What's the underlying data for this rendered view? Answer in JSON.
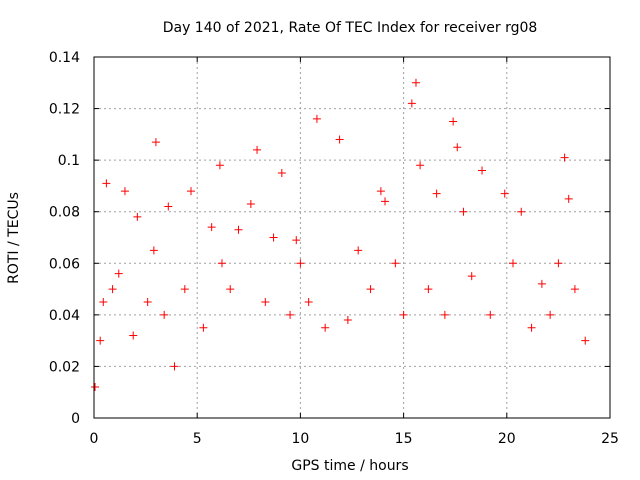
{
  "chart_data": {
    "type": "scatter",
    "title": "Day 140 of 2021, Rate Of TEC Index for receiver rg08",
    "xlabel": "GPS time / hours",
    "ylabel": "ROTI / TECUs",
    "xlim": [
      0,
      25
    ],
    "ylim": [
      0,
      0.14
    ],
    "xticks": [
      "0",
      "5",
      "10",
      "15",
      "20",
      "25"
    ],
    "yticks": [
      "0",
      "0.02",
      "0.04",
      "0.06",
      "0.08",
      "0.1",
      "0.12",
      "0.14"
    ],
    "grid": true,
    "marker": "+",
    "color": "#ff0000",
    "series": [
      {
        "x": [
          0.05,
          0.3,
          0.45,
          0.6,
          0.9,
          1.2,
          1.5,
          1.9,
          2.1,
          2.6,
          2.9,
          3.0,
          3.4,
          3.6,
          3.9,
          4.4,
          4.7,
          5.3,
          5.7,
          6.1,
          6.2,
          6.6,
          7.0,
          7.6,
          7.9,
          8.3,
          8.7,
          9.1,
          9.5,
          9.8,
          10.0,
          10.4,
          10.8,
          11.2,
          11.9,
          12.3,
          12.8,
          13.4,
          13.9,
          14.1,
          14.6,
          15.0,
          15.4,
          15.6,
          15.8,
          16.2,
          16.6,
          17.0,
          17.4,
          17.6,
          17.9,
          18.3,
          18.8,
          19.2,
          19.9,
          20.3,
          20.7,
          21.2,
          21.7,
          22.1,
          22.5,
          22.8,
          23.0,
          23.3,
          23.8
        ],
        "y": [
          0.012,
          0.03,
          0.045,
          0.091,
          0.05,
          0.056,
          0.088,
          0.032,
          0.078,
          0.045,
          0.065,
          0.107,
          0.04,
          0.082,
          0.02,
          0.05,
          0.088,
          0.035,
          0.074,
          0.098,
          0.06,
          0.05,
          0.073,
          0.083,
          0.104,
          0.045,
          0.07,
          0.095,
          0.04,
          0.069,
          0.06,
          0.045,
          0.116,
          0.035,
          0.108,
          0.038,
          0.065,
          0.05,
          0.088,
          0.084,
          0.06,
          0.04,
          0.122,
          0.13,
          0.098,
          0.05,
          0.087,
          0.04,
          0.115,
          0.105,
          0.08,
          0.055,
          0.096,
          0.04,
          0.087,
          0.06,
          0.08,
          0.035,
          0.052,
          0.04,
          0.06,
          0.101,
          0.085,
          0.05,
          0.03
        ]
      }
    ]
  }
}
